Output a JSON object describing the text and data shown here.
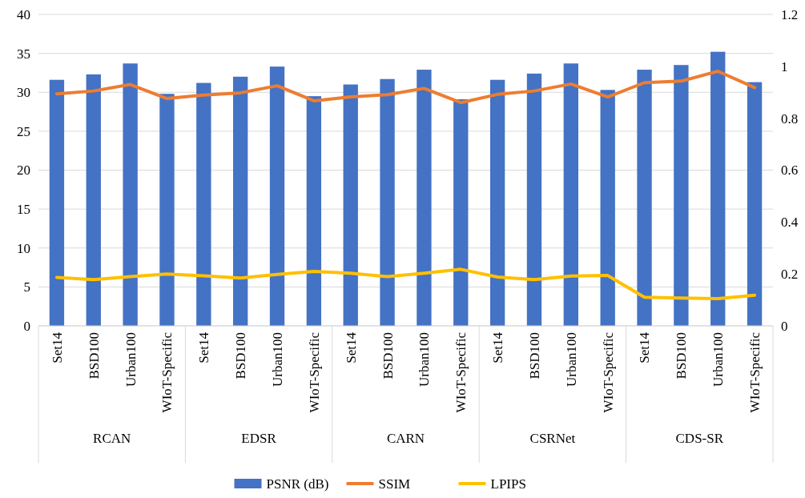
{
  "chart_data": {
    "type": "bar",
    "categories": [
      "Set14",
      "BSD100",
      "Urban100",
      "WIoT-Specific",
      "Set14",
      "BSD100",
      "Urban100",
      "WIoT-Specific",
      "Set14",
      "BSD100",
      "Urban100",
      "WIoT-Specific",
      "Set14",
      "BSD100",
      "Urban100",
      "WIoT-Specific",
      "Set14",
      "BSD100",
      "Urban100",
      "WIoT-Specific"
    ],
    "annotations": [
      "RCAN",
      "EDSR",
      "CARN",
      "CSRNet",
      "CDS-SR"
    ],
    "series": [
      {
        "name": "PSNR (dB)",
        "color": "#4472c4",
        "values": [
          31.6,
          32.3,
          33.7,
          29.8,
          31.2,
          32.0,
          33.3,
          29.5,
          31.0,
          31.7,
          32.9,
          29.1,
          31.6,
          32.4,
          33.7,
          30.3,
          32.9,
          33.5,
          35.2,
          31.3
        ]
      },
      {
        "name": "SSIM",
        "type": "line",
        "axis": "y2",
        "color": "#ed7d31",
        "values": [
          0.894,
          0.905,
          0.93,
          0.876,
          0.889,
          0.898,
          0.925,
          0.867,
          0.882,
          0.891,
          0.915,
          0.86,
          0.892,
          0.905,
          0.932,
          0.882,
          0.937,
          0.943,
          0.981,
          0.918
        ]
      },
      {
        "name": "LPIPS",
        "type": "line",
        "axis": "y2",
        "color": "#ffc000",
        "values": [
          0.187,
          0.178,
          0.19,
          0.2,
          0.193,
          0.184,
          0.198,
          0.21,
          0.203,
          0.19,
          0.203,
          0.218,
          0.188,
          0.178,
          0.192,
          0.194,
          0.11,
          0.107,
          0.105,
          0.118
        ]
      }
    ],
    "ylim": [
      0,
      40
    ],
    "yticks": [
      0,
      5,
      10,
      15,
      20,
      25,
      30,
      35,
      40
    ],
    "y2lim": [
      0,
      1.2
    ],
    "y2ticks": [
      0,
      0.2,
      0.4,
      0.6,
      0.8,
      1,
      1.2
    ],
    "grid": "y",
    "legend": "bottom"
  }
}
